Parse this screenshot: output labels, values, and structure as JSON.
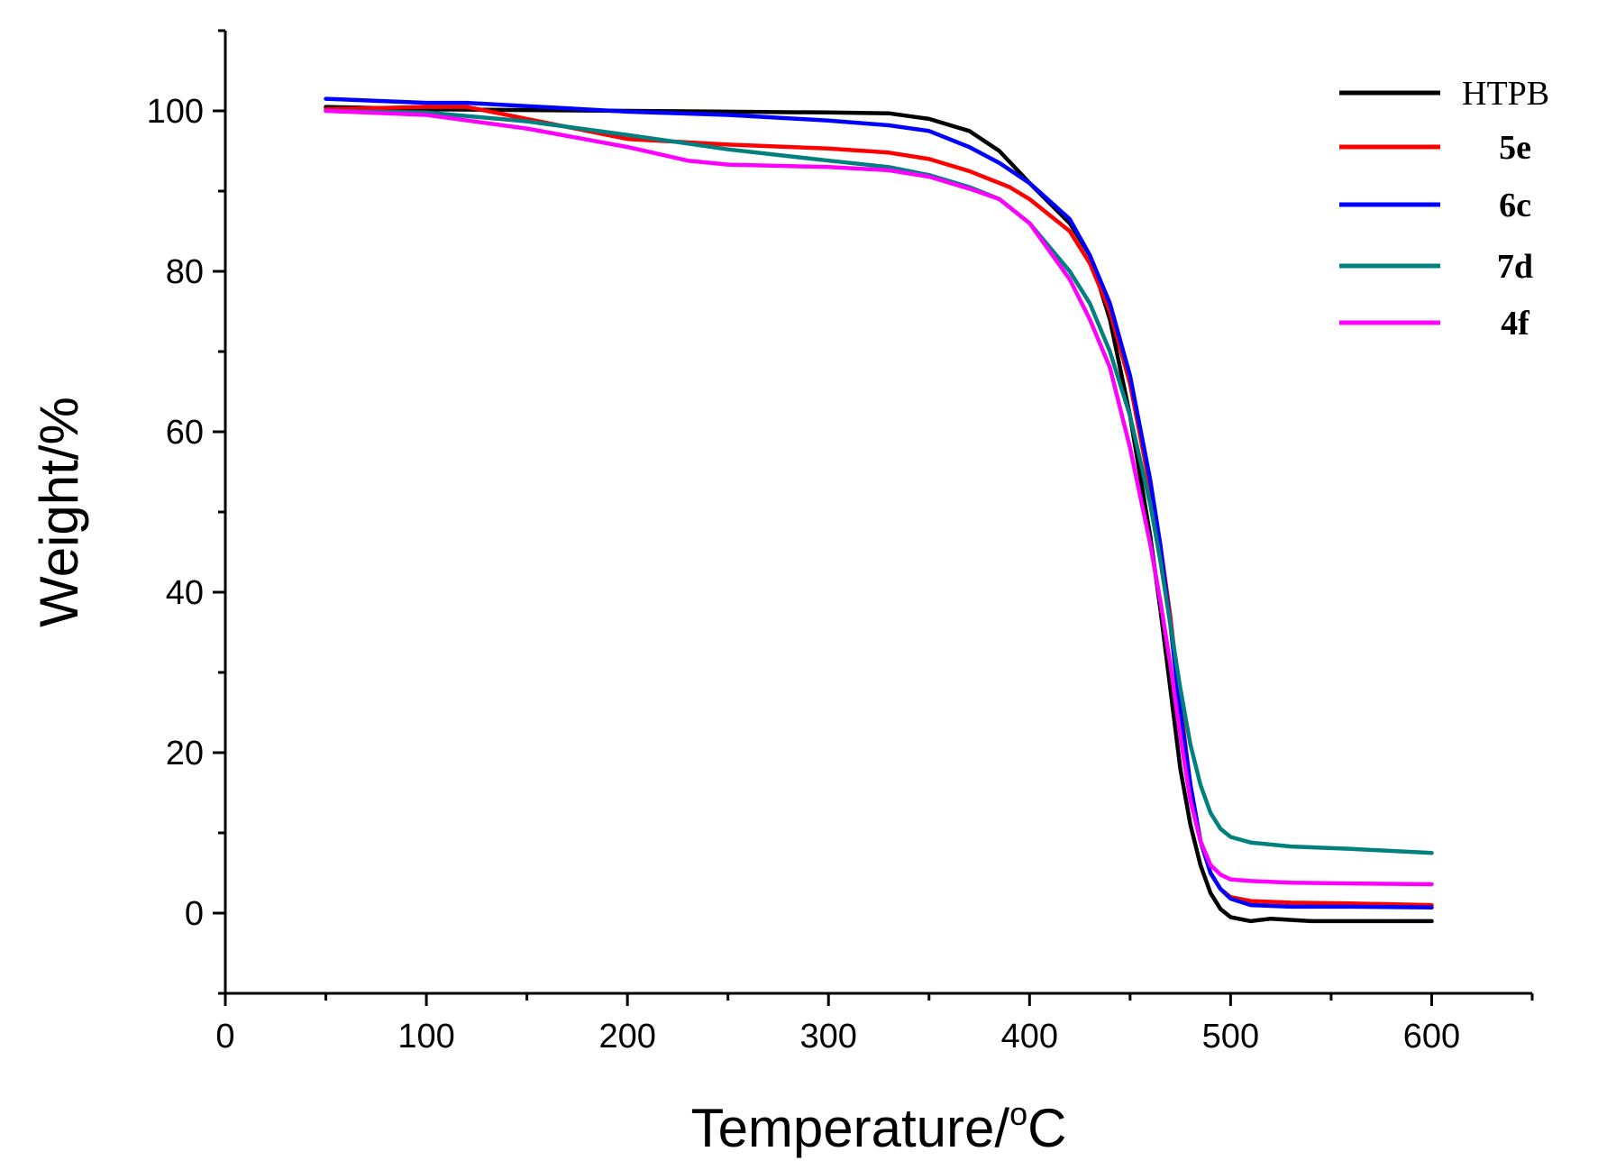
{
  "chart_data": {
    "type": "line",
    "xlabel": "Temperature/",
    "xlabel_sup": "o",
    "xlabel_unit": "C",
    "ylabel": "Weight/%",
    "xlim": [
      0,
      650
    ],
    "ylim": [
      -10,
      110
    ],
    "x_ticks": [
      0,
      100,
      200,
      300,
      400,
      500,
      600
    ],
    "y_ticks": [
      0,
      20,
      40,
      60,
      80,
      100
    ],
    "grid": false,
    "legend_position": "top-right",
    "series": [
      {
        "name": "HTPB",
        "color": "#000000",
        "bold": false,
        "points": [
          [
            50,
            100.5
          ],
          [
            100,
            100.2
          ],
          [
            150,
            100.1
          ],
          [
            200,
            100
          ],
          [
            250,
            99.9
          ],
          [
            300,
            99.8
          ],
          [
            330,
            99.7
          ],
          [
            350,
            99
          ],
          [
            370,
            97.5
          ],
          [
            385,
            95
          ],
          [
            400,
            91
          ],
          [
            420,
            86
          ],
          [
            430,
            82
          ],
          [
            440,
            74
          ],
          [
            450,
            62
          ],
          [
            460,
            47
          ],
          [
            465,
            38
          ],
          [
            470,
            28
          ],
          [
            475,
            18
          ],
          [
            480,
            11
          ],
          [
            485,
            6
          ],
          [
            490,
            2.5
          ],
          [
            495,
            0.5
          ],
          [
            500,
            -0.5
          ],
          [
            510,
            -1
          ],
          [
            520,
            -0.7
          ],
          [
            540,
            -1
          ],
          [
            560,
            -1
          ],
          [
            580,
            -1
          ],
          [
            600,
            -1
          ]
        ]
      },
      {
        "name": "5e",
        "color": "#ff0000",
        "bold": true,
        "points": [
          [
            50,
            100.2
          ],
          [
            100,
            100.5
          ],
          [
            120,
            100.5
          ],
          [
            150,
            99
          ],
          [
            200,
            96.5
          ],
          [
            250,
            95.8
          ],
          [
            300,
            95.3
          ],
          [
            330,
            94.8
          ],
          [
            350,
            94
          ],
          [
            370,
            92.5
          ],
          [
            390,
            90.5
          ],
          [
            400,
            89
          ],
          [
            420,
            85
          ],
          [
            430,
            81
          ],
          [
            440,
            75
          ],
          [
            450,
            66
          ],
          [
            460,
            53
          ],
          [
            465,
            46
          ],
          [
            470,
            37
          ],
          [
            475,
            26
          ],
          [
            480,
            16
          ],
          [
            485,
            9
          ],
          [
            490,
            5
          ],
          [
            495,
            3
          ],
          [
            500,
            2
          ],
          [
            510,
            1.5
          ],
          [
            530,
            1.3
          ],
          [
            560,
            1.2
          ],
          [
            600,
            1
          ]
        ]
      },
      {
        "name": "6c",
        "color": "#0000ff",
        "bold": true,
        "points": [
          [
            50,
            101.5
          ],
          [
            100,
            101
          ],
          [
            120,
            101
          ],
          [
            150,
            100.6
          ],
          [
            200,
            99.9
          ],
          [
            250,
            99.5
          ],
          [
            300,
            98.8
          ],
          [
            330,
            98.2
          ],
          [
            350,
            97.5
          ],
          [
            370,
            95.5
          ],
          [
            385,
            93.5
          ],
          [
            400,
            91
          ],
          [
            420,
            86.5
          ],
          [
            430,
            82
          ],
          [
            440,
            76
          ],
          [
            450,
            67
          ],
          [
            460,
            54
          ],
          [
            465,
            46
          ],
          [
            470,
            36
          ],
          [
            475,
            25
          ],
          [
            480,
            16
          ],
          [
            485,
            9
          ],
          [
            490,
            5
          ],
          [
            495,
            3
          ],
          [
            500,
            1.8
          ],
          [
            510,
            1
          ],
          [
            530,
            0.8
          ],
          [
            560,
            0.8
          ],
          [
            600,
            0.7
          ]
        ]
      },
      {
        "name": "7d",
        "color": "#00807f",
        "bold": true,
        "points": [
          [
            50,
            100
          ],
          [
            100,
            99.8
          ],
          [
            150,
            98.7
          ],
          [
            200,
            97
          ],
          [
            250,
            95.2
          ],
          [
            300,
            93.8
          ],
          [
            330,
            93
          ],
          [
            350,
            92
          ],
          [
            370,
            90.5
          ],
          [
            385,
            89
          ],
          [
            400,
            86
          ],
          [
            420,
            80
          ],
          [
            430,
            76
          ],
          [
            440,
            70
          ],
          [
            450,
            62
          ],
          [
            460,
            51
          ],
          [
            465,
            44
          ],
          [
            470,
            36
          ],
          [
            475,
            28
          ],
          [
            480,
            21
          ],
          [
            485,
            16
          ],
          [
            490,
            12.5
          ],
          [
            495,
            10.5
          ],
          [
            500,
            9.5
          ],
          [
            510,
            8.8
          ],
          [
            530,
            8.3
          ],
          [
            560,
            8
          ],
          [
            600,
            7.5
          ]
        ]
      },
      {
        "name": "4f",
        "color": "#ff00ff",
        "bold": true,
        "points": [
          [
            50,
            100
          ],
          [
            100,
            99.5
          ],
          [
            150,
            97.8
          ],
          [
            200,
            95.5
          ],
          [
            230,
            93.8
          ],
          [
            250,
            93.3
          ],
          [
            300,
            93
          ],
          [
            330,
            92.6
          ],
          [
            350,
            91.8
          ],
          [
            370,
            90.3
          ],
          [
            385,
            89
          ],
          [
            400,
            86
          ],
          [
            420,
            79
          ],
          [
            430,
            74
          ],
          [
            440,
            68
          ],
          [
            450,
            58
          ],
          [
            460,
            46
          ],
          [
            465,
            39
          ],
          [
            470,
            31
          ],
          [
            475,
            22
          ],
          [
            480,
            14
          ],
          [
            485,
            9
          ],
          [
            490,
            6
          ],
          [
            495,
            4.8
          ],
          [
            500,
            4.2
          ],
          [
            510,
            4
          ],
          [
            530,
            3.8
          ],
          [
            560,
            3.7
          ],
          [
            600,
            3.6
          ]
        ]
      }
    ]
  }
}
